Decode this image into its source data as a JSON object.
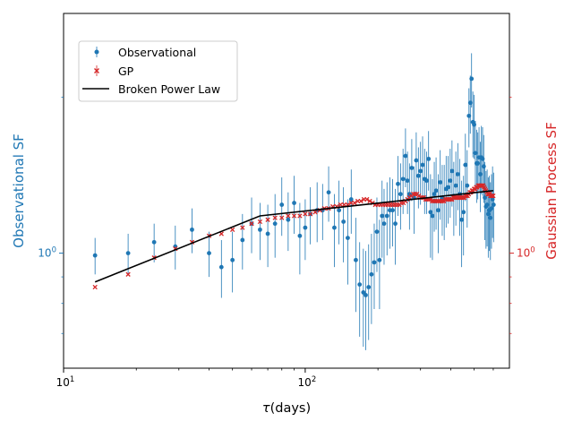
{
  "chart_data": {
    "type": "scatter",
    "xscale": "log",
    "yscale": "log",
    "xlim": [
      10,
      700
    ],
    "ylim": [
      0.6,
      2.9
    ],
    "xlabel_prefix": "τ",
    "xlabel_suffix": "(days)",
    "ylabel_left": "Observational SF",
    "ylabel_right": "Gaussian Process SF",
    "left_ticks": [
      {
        "value": 1.0,
        "label": "10",
        "exp": "0"
      }
    ],
    "right_ticks": [
      {
        "value": 1.0,
        "label": "10",
        "exp": "0"
      }
    ],
    "x_ticks": [
      {
        "value": 10,
        "label": "10",
        "exp": "1"
      },
      {
        "value": 100,
        "label": "10",
        "exp": "2"
      }
    ],
    "colors": {
      "observational": "#1f77b4",
      "gp": "#d62728",
      "model": "#000000"
    },
    "legend": {
      "position": "upper-left",
      "entries": [
        {
          "label": "Observational",
          "marker": "dot",
          "color": "#1f77b4"
        },
        {
          "label": "GP",
          "marker": "x",
          "color": "#d62728"
        },
        {
          "label": "Broken Power Law",
          "marker": "line",
          "color": "#000000"
        }
      ]
    },
    "series": [
      {
        "name": "Observational",
        "points": [
          [
            13.5,
            0.99,
            0.08
          ],
          [
            18.5,
            1.0,
            0.09
          ],
          [
            23.7,
            1.05,
            0.09
          ],
          [
            29,
            1.03,
            0.1
          ],
          [
            34,
            1.11,
            0.11
          ],
          [
            40,
            1.0,
            0.1
          ],
          [
            45,
            0.94,
            0.12
          ],
          [
            50,
            0.97,
            0.13
          ],
          [
            55,
            1.06,
            0.13
          ],
          [
            60,
            1.14,
            0.14
          ],
          [
            65,
            1.11,
            0.14
          ],
          [
            70,
            1.09,
            0.15
          ],
          [
            75,
            1.14,
            0.16
          ],
          [
            80,
            1.24,
            0.16
          ],
          [
            85,
            1.16,
            0.15
          ],
          [
            90,
            1.25,
            0.16
          ],
          [
            95,
            1.08,
            0.17
          ],
          [
            100,
            1.12,
            0.15
          ],
          [
            105,
            1.19,
            0.15
          ],
          [
            112,
            1.21,
            0.16
          ],
          [
            118,
            1.21,
            0.15
          ],
          [
            125,
            1.31,
            0.16
          ],
          [
            132,
            1.12,
            0.18
          ],
          [
            138,
            1.21,
            0.17
          ],
          [
            144,
            1.15,
            0.19
          ],
          [
            150,
            1.07,
            0.2
          ],
          [
            155,
            1.27,
            0.18
          ],
          [
            162,
            0.97,
            0.2
          ],
          [
            168,
            0.87,
            0.18
          ],
          [
            174,
            0.84,
            0.18
          ],
          [
            178,
            0.83,
            0.18
          ],
          [
            183,
            0.86,
            0.18
          ],
          [
            188,
            0.91,
            0.18
          ],
          [
            193,
            0.96,
            0.18
          ],
          [
            198,
            1.1,
            0.18
          ],
          [
            203,
            0.97,
            0.19
          ],
          [
            208,
            1.18,
            0.2
          ],
          [
            212,
            1.14,
            0.19
          ],
          [
            218,
            1.18,
            0.19
          ],
          [
            224,
            1.21,
            0.19
          ],
          [
            230,
            1.21,
            0.18
          ],
          [
            236,
            1.14,
            0.19
          ],
          [
            242,
            1.36,
            0.18
          ],
          [
            248,
            1.3,
            0.19
          ],
          [
            254,
            1.39,
            0.2
          ],
          [
            260,
            1.54,
            0.2
          ],
          [
            265,
            1.38,
            0.19
          ],
          [
            270,
            1.3,
            0.19
          ],
          [
            276,
            1.46,
            0.2
          ],
          [
            282,
            1.28,
            0.19
          ],
          [
            288,
            1.51,
            0.2
          ],
          [
            294,
            1.41,
            0.19
          ],
          [
            300,
            1.44,
            0.2
          ],
          [
            306,
            1.48,
            0.2
          ],
          [
            312,
            1.39,
            0.2
          ],
          [
            318,
            1.38,
            0.19
          ],
          [
            324,
            1.52,
            0.2
          ],
          [
            330,
            1.2,
            0.22
          ],
          [
            336,
            1.18,
            0.21
          ],
          [
            342,
            1.3,
            0.2
          ],
          [
            348,
            1.32,
            0.21
          ],
          [
            355,
            1.21,
            0.21
          ],
          [
            362,
            1.37,
            0.21
          ],
          [
            369,
            1.28,
            0.2
          ],
          [
            376,
            1.27,
            0.21
          ],
          [
            383,
            1.33,
            0.21
          ],
          [
            390,
            1.34,
            0.2
          ],
          [
            398,
            1.38,
            0.21
          ],
          [
            405,
            1.44,
            0.21
          ],
          [
            412,
            1.29,
            0.21
          ],
          [
            420,
            1.35,
            0.22
          ],
          [
            428,
            1.42,
            0.21
          ],
          [
            436,
            1.3,
            0.22
          ],
          [
            444,
            1.16,
            0.22
          ],
          [
            452,
            1.2,
            0.21
          ],
          [
            460,
            1.48,
            0.22
          ],
          [
            468,
            1.35,
            0.23
          ],
          [
            476,
            1.84,
            0.24
          ],
          [
            482,
            1.95,
            0.25
          ],
          [
            488,
            2.17,
            0.26
          ],
          [
            494,
            1.79,
            0.26
          ],
          [
            500,
            1.77,
            0.25
          ],
          [
            506,
            1.56,
            0.24
          ],
          [
            512,
            1.49,
            0.24
          ],
          [
            518,
            1.49,
            0.22
          ],
          [
            524,
            1.53,
            0.22
          ],
          [
            530,
            1.42,
            0.22
          ],
          [
            536,
            1.53,
            0.23
          ],
          [
            542,
            1.52,
            0.23
          ],
          [
            548,
            1.47,
            0.22
          ],
          [
            554,
            1.28,
            0.22
          ],
          [
            560,
            1.23,
            0.21
          ],
          [
            566,
            1.24,
            0.21
          ],
          [
            572,
            1.19,
            0.21
          ],
          [
            578,
            1.21,
            0.2
          ],
          [
            584,
            1.17,
            0.2
          ],
          [
            590,
            1.22,
            0.2
          ],
          [
            596,
            1.27,
            0.2
          ],
          [
            602,
            1.24,
            0.19
          ]
        ]
      },
      {
        "name": "GP",
        "points": [
          [
            13.5,
            0.86
          ],
          [
            18.5,
            0.91
          ],
          [
            23.7,
            0.98
          ],
          [
            29,
            1.02
          ],
          [
            34,
            1.05
          ],
          [
            40,
            1.08
          ],
          [
            45,
            1.09
          ],
          [
            50,
            1.11
          ],
          [
            55,
            1.12
          ],
          [
            60,
            1.14
          ],
          [
            65,
            1.15
          ],
          [
            70,
            1.16
          ],
          [
            75,
            1.17
          ],
          [
            80,
            1.17
          ],
          [
            85,
            1.18
          ],
          [
            90,
            1.18
          ],
          [
            95,
            1.18
          ],
          [
            100,
            1.19
          ],
          [
            105,
            1.19
          ],
          [
            110,
            1.2
          ],
          [
            115,
            1.21
          ],
          [
            120,
            1.22
          ],
          [
            125,
            1.22
          ],
          [
            130,
            1.23
          ],
          [
            135,
            1.23
          ],
          [
            140,
            1.24
          ],
          [
            145,
            1.24
          ],
          [
            150,
            1.24
          ],
          [
            155,
            1.25
          ],
          [
            160,
            1.25
          ],
          [
            165,
            1.26
          ],
          [
            170,
            1.26
          ],
          [
            175,
            1.27
          ],
          [
            180,
            1.27
          ],
          [
            185,
            1.26
          ],
          [
            190,
            1.25
          ],
          [
            195,
            1.24
          ],
          [
            200,
            1.24
          ],
          [
            205,
            1.24
          ],
          [
            210,
            1.24
          ],
          [
            215,
            1.24
          ],
          [
            220,
            1.24
          ],
          [
            225,
            1.24
          ],
          [
            230,
            1.24
          ],
          [
            235,
            1.24
          ],
          [
            240,
            1.24
          ],
          [
            245,
            1.24
          ],
          [
            250,
            1.25
          ],
          [
            255,
            1.25
          ],
          [
            260,
            1.26
          ],
          [
            265,
            1.27
          ],
          [
            270,
            1.28
          ],
          [
            275,
            1.29
          ],
          [
            280,
            1.3
          ],
          [
            285,
            1.3
          ],
          [
            290,
            1.3
          ],
          [
            295,
            1.29
          ],
          [
            300,
            1.28
          ],
          [
            305,
            1.28
          ],
          [
            310,
            1.28
          ],
          [
            315,
            1.27
          ],
          [
            320,
            1.27
          ],
          [
            325,
            1.27
          ],
          [
            330,
            1.27
          ],
          [
            335,
            1.26
          ],
          [
            340,
            1.26
          ],
          [
            345,
            1.26
          ],
          [
            350,
            1.26
          ],
          [
            355,
            1.26
          ],
          [
            360,
            1.26
          ],
          [
            365,
            1.26
          ],
          [
            370,
            1.26
          ],
          [
            375,
            1.26
          ],
          [
            380,
            1.27
          ],
          [
            385,
            1.27
          ],
          [
            390,
            1.27
          ],
          [
            395,
            1.27
          ],
          [
            400,
            1.27
          ],
          [
            405,
            1.27
          ],
          [
            410,
            1.28
          ],
          [
            415,
            1.28
          ],
          [
            420,
            1.28
          ],
          [
            425,
            1.28
          ],
          [
            430,
            1.28
          ],
          [
            435,
            1.28
          ],
          [
            440,
            1.28
          ],
          [
            445,
            1.28
          ],
          [
            450,
            1.28
          ],
          [
            455,
            1.28
          ],
          [
            460,
            1.29
          ],
          [
            465,
            1.29
          ],
          [
            470,
            1.29
          ],
          [
            475,
            1.3
          ],
          [
            480,
            1.31
          ],
          [
            485,
            1.31
          ],
          [
            490,
            1.32
          ],
          [
            495,
            1.32
          ],
          [
            500,
            1.33
          ],
          [
            505,
            1.33
          ],
          [
            510,
            1.34
          ],
          [
            515,
            1.34
          ],
          [
            520,
            1.35
          ],
          [
            525,
            1.35
          ],
          [
            530,
            1.35
          ],
          [
            535,
            1.35
          ],
          [
            540,
            1.35
          ],
          [
            545,
            1.35
          ],
          [
            550,
            1.34
          ],
          [
            555,
            1.33
          ],
          [
            560,
            1.32
          ],
          [
            565,
            1.31
          ],
          [
            570,
            1.3
          ],
          [
            575,
            1.3
          ],
          [
            580,
            1.3
          ],
          [
            585,
            1.29
          ],
          [
            590,
            1.29
          ],
          [
            595,
            1.29
          ],
          [
            600,
            1.29
          ]
        ]
      },
      {
        "name": "Broken Power Law",
        "points": [
          [
            13.5,
            0.88
          ],
          [
            65,
            1.18
          ],
          [
            600,
            1.32
          ]
        ]
      }
    ]
  }
}
